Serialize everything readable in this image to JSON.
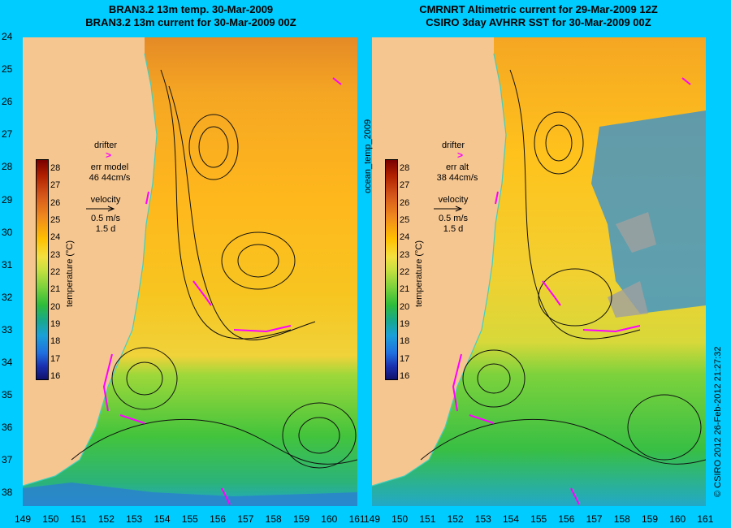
{
  "panels": {
    "left": {
      "title_line1": "BRAN3.2 13m temp. 30-Mar-2009",
      "title_line2": "BRAN3.2 13m current for 30-Mar-2009 00Z",
      "err_label": "err model",
      "err_value": "46 44cm/s"
    },
    "right": {
      "title_line1": "CMRNRT Altimetric current for 29-Mar-2009 12Z",
      "title_line2": "CSIRO 3day AVHRR SST for 30-Mar-2009 00Z",
      "err_label": "err alt",
      "err_value": "38 44cm/s"
    }
  },
  "legend": {
    "drifter_label": "drifter",
    "drifter_symbol": ">",
    "velocity_label": "velocity",
    "velocity_scale": "0.5 m/s",
    "velocity_time": "1.5 d"
  },
  "colorbar": {
    "label": "temperature (°C)",
    "ticks": [
      "28",
      "27",
      "26",
      "25",
      "24",
      "23",
      "22",
      "21",
      "20",
      "19",
      "18",
      "17",
      "16"
    ]
  },
  "axes": {
    "lat_ticks": [
      "24",
      "25",
      "26",
      "27",
      "28",
      "29",
      "30",
      "31",
      "32",
      "33",
      "34",
      "35",
      "36",
      "37",
      "38"
    ],
    "lon_ticks_left": [
      "149",
      "150",
      "151",
      "152",
      "153",
      "154",
      "155",
      "156",
      "157",
      "158",
      "159",
      "160",
      "161"
    ],
    "lon_ticks_right": [
      "149",
      "150",
      "151",
      "152",
      "153",
      "154",
      "155",
      "156",
      "157",
      "158",
      "159",
      "160",
      "161"
    ]
  },
  "side_label": "ocean_temp_2009",
  "copyright": "© CSIRO 2012   26-Feb-2012 21:27:32",
  "colors": {
    "background": "#00ccff",
    "land": "#f6c690",
    "drifter": "#ff00ff",
    "coastline": "#40d0c0"
  }
}
